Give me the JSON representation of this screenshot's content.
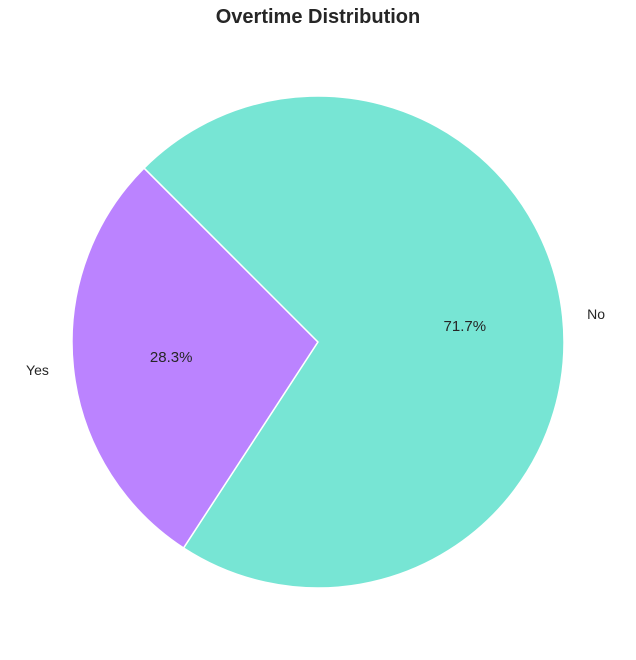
{
  "chart_data": {
    "type": "pie",
    "title": "Overtime Distribution",
    "slices": [
      {
        "label": "Yes",
        "value": 28.3,
        "pct_label": "28.3%",
        "color": "#bb83ff"
      },
      {
        "label": "No",
        "value": 71.7,
        "pct_label": "71.7%",
        "color": "#77e5d4"
      }
    ],
    "start_angle_deg": 135,
    "direction": "counterclockwise",
    "slice_edge_color": "#ffffff"
  }
}
